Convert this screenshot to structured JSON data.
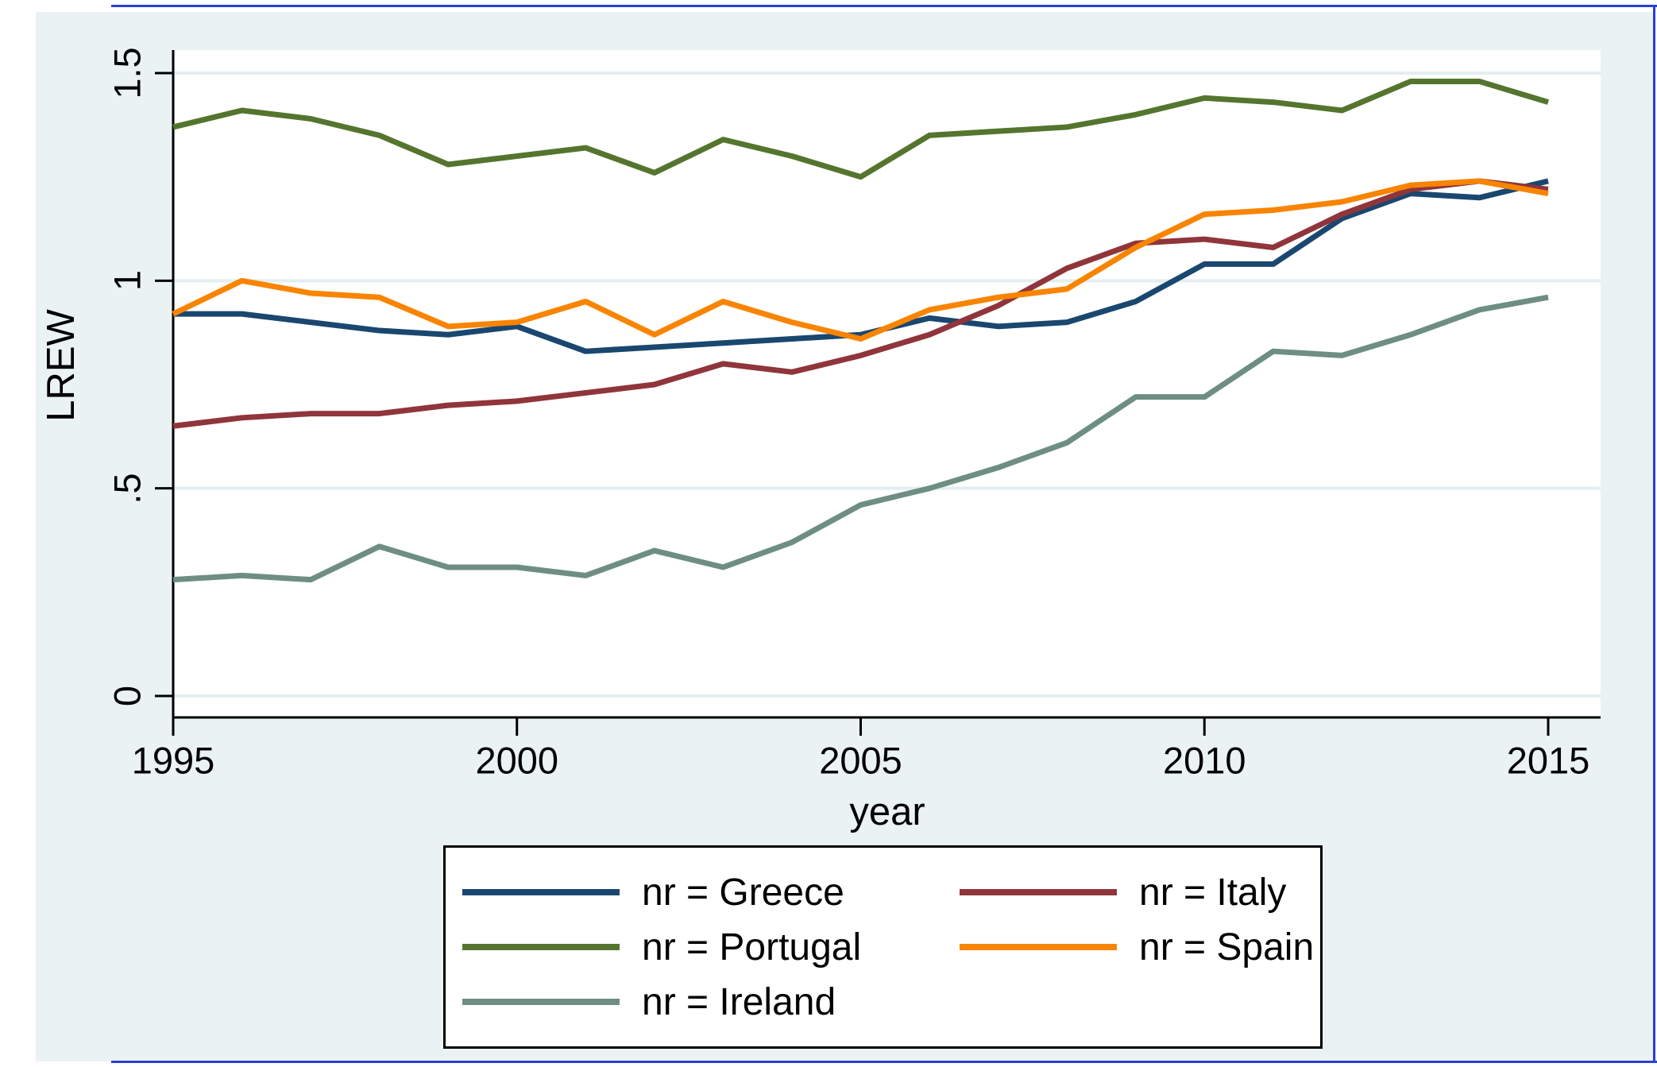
{
  "chart_data": {
    "type": "line",
    "x": [
      1995,
      1996,
      1997,
      1998,
      1999,
      2000,
      2001,
      2002,
      2003,
      2004,
      2005,
      2006,
      2007,
      2008,
      2009,
      2010,
      2011,
      2012,
      2013,
      2014,
      2015
    ],
    "series": [
      {
        "name": "Greece",
        "legend_label": "nr = Greece",
        "color": "#1A476F",
        "values": [
          0.92,
          0.92,
          0.9,
          0.88,
          0.87,
          0.89,
          0.83,
          0.84,
          0.85,
          0.86,
          0.87,
          0.91,
          0.89,
          0.9,
          0.95,
          1.04,
          1.04,
          1.15,
          1.21,
          1.2,
          1.24
        ]
      },
      {
        "name": "Italy",
        "legend_label": "nr = Italy",
        "color": "#90353B",
        "values": [
          0.65,
          0.67,
          0.68,
          0.68,
          0.7,
          0.71,
          0.73,
          0.75,
          0.8,
          0.78,
          0.82,
          0.87,
          0.94,
          1.03,
          1.09,
          1.1,
          1.08,
          1.16,
          1.22,
          1.24,
          1.22
        ]
      },
      {
        "name": "Portugal",
        "legend_label": "nr = Portugal",
        "color": "#55752F",
        "values": [
          1.37,
          1.41,
          1.39,
          1.35,
          1.28,
          1.3,
          1.32,
          1.26,
          1.34,
          1.3,
          1.25,
          1.35,
          1.36,
          1.37,
          1.4,
          1.44,
          1.43,
          1.41,
          1.48,
          1.48,
          1.43
        ]
      },
      {
        "name": "Spain",
        "legend_label": "nr = Spain",
        "color": "#F98400",
        "values": [
          0.92,
          1.0,
          0.97,
          0.96,
          0.89,
          0.9,
          0.95,
          0.87,
          0.95,
          0.9,
          0.86,
          0.93,
          0.96,
          0.98,
          1.08,
          1.16,
          1.17,
          1.19,
          1.23,
          1.24,
          1.21
        ]
      },
      {
        "name": "Ireland",
        "legend_label": "nr = Ireland",
        "color": "#6E8E84",
        "values": [
          0.28,
          0.29,
          0.28,
          0.36,
          0.31,
          0.31,
          0.29,
          0.35,
          0.31,
          0.37,
          0.46,
          0.5,
          0.55,
          0.61,
          0.72,
          0.72,
          0.83,
          0.82,
          0.87,
          0.93,
          0.96
        ]
      }
    ],
    "legend_order": [
      "Greece",
      "Italy",
      "Portugal",
      "Spain",
      "Ireland"
    ],
    "title": "",
    "xlabel": "year",
    "ylabel": "LREW",
    "xlim": [
      1995,
      2015
    ],
    "ylim": [
      0,
      1.55
    ],
    "xticks": {
      "values": [
        1995,
        2000,
        2005,
        2010,
        2015
      ],
      "labels": [
        "1995",
        "2000",
        "2005",
        "2010",
        "2015"
      ]
    },
    "yticks": {
      "values": [
        0,
        0.5,
        1,
        1.5
      ],
      "labels": [
        "0",
        ".5",
        "1",
        "1.5"
      ]
    },
    "grid": "horizontal",
    "legend_position": "bottom-center",
    "colors": {
      "panel_background": "#EAF2F3",
      "plot_background": "#FFFFFF",
      "gridline": "#E3EEF0",
      "axis": "#000000",
      "frame_accent": "#2A3FD4"
    }
  }
}
